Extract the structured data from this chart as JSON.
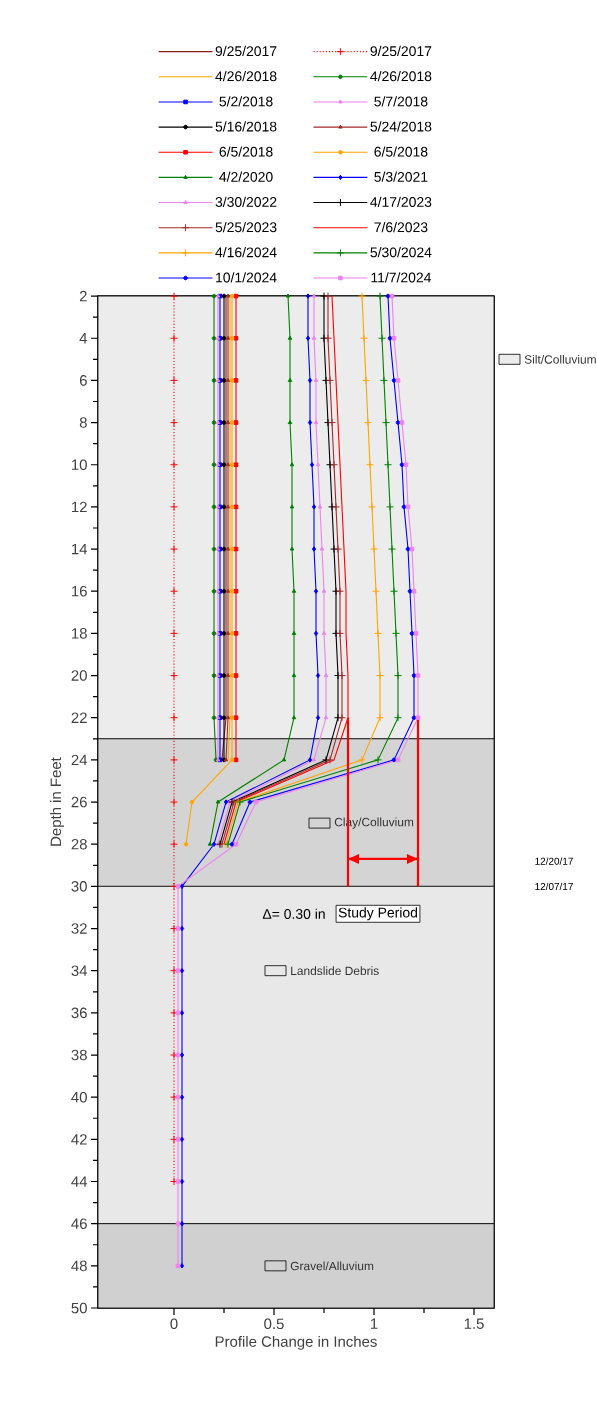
{
  "chart_data": {
    "type": "line",
    "xlabel": "Profile Change in Inches",
    "ylabel": "Depth in Feet",
    "xlim": [
      -0.38,
      1.6
    ],
    "ylim": [
      50,
      2
    ],
    "xticks": [
      0,
      0.5,
      1,
      1.5
    ],
    "yticks": [
      2,
      4,
      6,
      8,
      10,
      12,
      14,
      16,
      18,
      20,
      22,
      24,
      26,
      28,
      30,
      32,
      34,
      36,
      38,
      40,
      42,
      44,
      46,
      48,
      50
    ],
    "legend": "top",
    "bands": [
      {
        "axis": "y",
        "from": 2,
        "to": 23,
        "label": "Silt/Colluvium",
        "color": "#ececec"
      },
      {
        "axis": "y",
        "from": 23,
        "to": 30,
        "label": "Clay/Colluvium",
        "color": "#d4d4d4"
      },
      {
        "axis": "y",
        "from": 30,
        "to": 46,
        "label": "Landslide Debris",
        "color": "#e8e8e8"
      },
      {
        "axis": "y",
        "from": 46,
        "to": 50,
        "label": "Gravel/Alluvium",
        "color": "#d0d0d0"
      }
    ],
    "annotations": [
      "Δ= 0.30 in",
      "Study Period",
      "12/20/17",
      "12/07/17"
    ],
    "series": [
      {
        "name": "9/25/2017",
        "color": "#8b1a1a",
        "marker": "none",
        "values": [
          2,
          4,
          6,
          8,
          10,
          12,
          14,
          16,
          18,
          20,
          22,
          24
        ],
        "x": [
          0.26,
          0.26,
          0.26,
          0.26,
          0.26,
          0.26,
          0.26,
          0.26,
          0.26,
          0.26,
          0.26,
          0.24
        ]
      },
      {
        "name": "9/25/2017",
        "color": "#ff0000",
        "marker": "cross",
        "line_style": "dotted",
        "values": [
          2,
          4,
          6,
          8,
          10,
          12,
          14,
          16,
          18,
          20,
          22,
          24,
          26,
          28,
          30,
          32,
          34,
          36,
          38,
          40,
          42,
          44
        ],
        "x": [
          0,
          0,
          0,
          0,
          0,
          0,
          0,
          0,
          0,
          0,
          0,
          0,
          0,
          0,
          0,
          0,
          0,
          0,
          0,
          0,
          0,
          0
        ]
      },
      {
        "name": "4/26/2018",
        "color": "#ffa500",
        "marker": "none",
        "values": [
          2,
          4,
          6,
          8,
          10,
          12,
          14,
          16,
          18,
          20,
          22,
          24
        ],
        "x": [
          0.28,
          0.28,
          0.28,
          0.28,
          0.28,
          0.28,
          0.28,
          0.28,
          0.28,
          0.28,
          0.28,
          0.27
        ]
      },
      {
        "name": "4/26/2018",
        "color": "#008000",
        "marker": "circle",
        "values": [
          2,
          4,
          6,
          8,
          10,
          12,
          14,
          16,
          18,
          20,
          22,
          24
        ],
        "x": [
          0.2,
          0.2,
          0.2,
          0.2,
          0.2,
          0.2,
          0.2,
          0.2,
          0.2,
          0.2,
          0.2,
          0.21
        ]
      },
      {
        "name": "5/2/2018",
        "color": "#0000ff",
        "marker": "square",
        "values": [
          2,
          4,
          6,
          8,
          10,
          12,
          14,
          16,
          18,
          20,
          22,
          24
        ],
        "x": [
          0.23,
          0.23,
          0.23,
          0.23,
          0.23,
          0.23,
          0.23,
          0.23,
          0.23,
          0.23,
          0.23,
          0.23
        ]
      },
      {
        "name": "5/7/2018",
        "color": "#ee82ee",
        "marker": "triangle",
        "values": [
          2,
          4,
          6,
          8,
          10,
          12,
          14,
          16,
          18,
          20,
          22,
          24
        ],
        "x": [
          0.22,
          0.22,
          0.22,
          0.22,
          0.22,
          0.22,
          0.22,
          0.22,
          0.22,
          0.22,
          0.22,
          0.22
        ]
      },
      {
        "name": "5/16/2018",
        "color": "#000000",
        "marker": "circle",
        "values": [
          2,
          4,
          6,
          8,
          10,
          12,
          14,
          16,
          18,
          20,
          22,
          24
        ],
        "x": [
          0.25,
          0.25,
          0.25,
          0.25,
          0.25,
          0.25,
          0.25,
          0.25,
          0.25,
          0.25,
          0.25,
          0.25
        ]
      },
      {
        "name": "5/24/2018",
        "color": "#a52a2a",
        "marker": "triangle",
        "values": [
          2,
          4,
          6,
          8,
          10,
          12,
          14,
          16,
          18,
          20,
          22,
          24
        ],
        "x": [
          0.27,
          0.27,
          0.27,
          0.27,
          0.27,
          0.27,
          0.27,
          0.27,
          0.27,
          0.27,
          0.27,
          0.26
        ]
      },
      {
        "name": "6/5/2018",
        "color": "#ff0000",
        "marker": "square",
        "values": [
          2,
          4,
          6,
          8,
          10,
          12,
          14,
          16,
          18,
          20,
          22,
          24
        ],
        "x": [
          0.31,
          0.31,
          0.31,
          0.31,
          0.31,
          0.31,
          0.31,
          0.31,
          0.31,
          0.31,
          0.31,
          0.31
        ]
      },
      {
        "name": "6/5/2018",
        "color": "#ffa500",
        "marker": "circle",
        "values": [
          2,
          4,
          6,
          8,
          10,
          12,
          14,
          16,
          18,
          20,
          22,
          24,
          26,
          28
        ],
        "x": [
          0.29,
          0.29,
          0.29,
          0.29,
          0.29,
          0.29,
          0.29,
          0.29,
          0.29,
          0.29,
          0.29,
          0.29,
          0.09,
          0.06
        ]
      },
      {
        "name": "4/2/2020",
        "color": "#008000",
        "marker": "triangle",
        "values": [
          2,
          4,
          6,
          8,
          10,
          12,
          14,
          16,
          18,
          20,
          22,
          24,
          26,
          28
        ],
        "x": [
          0.57,
          0.58,
          0.58,
          0.58,
          0.59,
          0.59,
          0.59,
          0.6,
          0.6,
          0.6,
          0.6,
          0.55,
          0.22,
          0.18
        ]
      },
      {
        "name": "5/3/2021",
        "color": "#0000ff",
        "marker": "diamond",
        "values": [
          2,
          4,
          6,
          8,
          10,
          12,
          14,
          16,
          18,
          20,
          22,
          24,
          26,
          28,
          30,
          32,
          34,
          36,
          38,
          40,
          42,
          44,
          46,
          48
        ],
        "x": [
          0.67,
          0.67,
          0.68,
          0.68,
          0.69,
          0.7,
          0.7,
          0.71,
          0.71,
          0.72,
          0.72,
          0.68,
          0.26,
          0.2,
          0.04,
          0.04,
          0.04,
          0.04,
          0.04,
          0.04,
          0.04,
          0.04,
          0.04,
          0.04
        ]
      },
      {
        "name": "3/30/2022",
        "color": "#ee82ee",
        "marker": "triangle",
        "values": [
          2,
          4,
          6,
          8,
          10,
          12,
          14,
          16,
          18,
          20,
          22,
          24,
          26,
          28
        ],
        "x": [
          0.7,
          0.7,
          0.71,
          0.71,
          0.72,
          0.73,
          0.74,
          0.75,
          0.75,
          0.76,
          0.76,
          0.7,
          0.28,
          0.22
        ]
      },
      {
        "name": "4/17/2023",
        "color": "#000000",
        "marker": "cross",
        "values": [
          2,
          4,
          6,
          8,
          10,
          12,
          14,
          16,
          18,
          20,
          22,
          24,
          26,
          28
        ],
        "x": [
          0.75,
          0.75,
          0.76,
          0.77,
          0.78,
          0.79,
          0.8,
          0.81,
          0.81,
          0.82,
          0.82,
          0.76,
          0.29,
          0.23
        ]
      },
      {
        "name": "5/25/2023",
        "color": "#a52a2a",
        "marker": "cross",
        "values": [
          2,
          4,
          6,
          8,
          10,
          12,
          14,
          16,
          18,
          20,
          22,
          24,
          26,
          28
        ],
        "x": [
          0.77,
          0.77,
          0.78,
          0.79,
          0.8,
          0.81,
          0.82,
          0.83,
          0.83,
          0.84,
          0.84,
          0.78,
          0.3,
          0.24
        ]
      },
      {
        "name": "7/6/2023",
        "color": "#ff0000",
        "marker": "none",
        "values": [
          2,
          4,
          6,
          8,
          10,
          12,
          14,
          16,
          18,
          20,
          22,
          24,
          26,
          28
        ],
        "x": [
          0.79,
          0.8,
          0.81,
          0.82,
          0.83,
          0.84,
          0.85,
          0.86,
          0.86,
          0.87,
          0.87,
          0.8,
          0.31,
          0.25
        ]
      },
      {
        "name": "4/16/2024",
        "color": "#ffa500",
        "marker": "cross",
        "values": [
          2,
          4,
          6,
          8,
          10,
          12,
          14,
          16,
          18,
          20,
          22,
          24,
          26,
          28
        ],
        "x": [
          0.94,
          0.95,
          0.96,
          0.97,
          0.98,
          0.99,
          1.0,
          1.01,
          1.02,
          1.03,
          1.03,
          0.94,
          0.32,
          0.26
        ]
      },
      {
        "name": "5/30/2024",
        "color": "#008000",
        "marker": "cross",
        "values": [
          2,
          4,
          6,
          8,
          10,
          12,
          14,
          16,
          18,
          20,
          22,
          24,
          26,
          28
        ],
        "x": [
          1.03,
          1.04,
          1.05,
          1.06,
          1.07,
          1.08,
          1.09,
          1.1,
          1.11,
          1.12,
          1.12,
          1.02,
          0.33,
          0.27
        ]
      },
      {
        "name": "10/1/2024",
        "color": "#0000ff",
        "marker": "circle",
        "values": [
          2,
          4,
          6,
          8,
          10,
          12,
          14,
          16,
          18,
          20,
          22,
          24,
          26,
          28
        ],
        "x": [
          1.07,
          1.08,
          1.1,
          1.12,
          1.14,
          1.15,
          1.17,
          1.18,
          1.19,
          1.2,
          1.2,
          1.1,
          0.38,
          0.29
        ]
      },
      {
        "name": "11/7/2024",
        "color": "#ee82ee",
        "marker": "square",
        "values": [
          2,
          4,
          6,
          8,
          10,
          12,
          14,
          16,
          18,
          20,
          22,
          24,
          26,
          28,
          30,
          32,
          34,
          36,
          38,
          40,
          42,
          44,
          46,
          48
        ],
        "x": [
          1.09,
          1.1,
          1.12,
          1.14,
          1.16,
          1.17,
          1.19,
          1.2,
          1.21,
          1.22,
          1.22,
          1.12,
          0.41,
          0.31,
          0.02,
          0.02,
          0.02,
          0.02,
          0.02,
          0.02,
          0.02,
          0.02,
          0.02,
          0.02
        ]
      },
      {
        "color": "#ff0000",
        "marker": "none",
        "values": [
          22,
          30
        ],
        "x": [
          0.87,
          0.87
        ]
      },
      {
        "color": "#ff0000",
        "marker": "none",
        "values": [
          22,
          30
        ],
        "x": [
          1.22,
          1.22
        ]
      },
      {
        "color": "#ff0000",
        "marker": "none",
        "values": [
          28.7,
          28.7
        ],
        "x": [
          0.87,
          1.22
        ]
      }
    ]
  }
}
